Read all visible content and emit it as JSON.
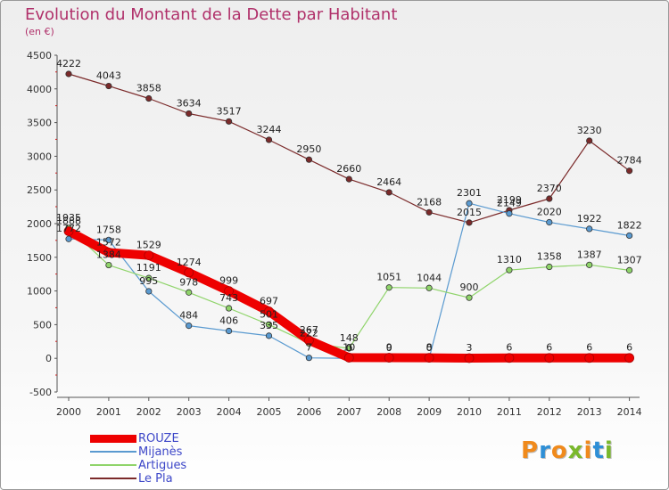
{
  "title": "Evolution du Montant de la Dette par Habitant",
  "unit": "(en €)",
  "logo": {
    "text": "Proxiti",
    "letter_colors": [
      "#f08a1c",
      "#2e8fd6",
      "#f08a1c",
      "#7ab82c",
      "#f08a1c",
      "#2e8fd6",
      "#7ab82c"
    ]
  },
  "chart_data": {
    "type": "line",
    "x": [
      "2000",
      "2001",
      "2002",
      "2003",
      "2004",
      "2005",
      "2006",
      "2007",
      "2008",
      "2009",
      "2010",
      "2011",
      "2012",
      "2013",
      "2014"
    ],
    "ylim": [
      -500,
      4500
    ],
    "yticks": [
      -500,
      0,
      500,
      1000,
      1500,
      2000,
      2500,
      3000,
      3500,
      4000,
      4500
    ],
    "grid": false,
    "legend_position": "bottom-left",
    "series": [
      {
        "name": "Le Pla",
        "color": "#7b2a2a",
        "width": 1.2,
        "values": [
          4222,
          4043,
          3858,
          3634,
          3517,
          3244,
          2950,
          2660,
          2464,
          2168,
          2015,
          2199,
          2370,
          3230,
          2784
        ]
      },
      {
        "name": "Mijanès",
        "color": "#5a9ad0",
        "width": 1.2,
        "values": [
          1772,
          1758,
          995,
          484,
          406,
          335,
          7,
          0,
          0,
          0,
          2301,
          2149,
          2020,
          1922,
          1822
        ]
      },
      {
        "name": "Artigues",
        "color": "#8fd46a",
        "width": 1.2,
        "values": [
          1935,
          1384,
          1191,
          978,
          743,
          501,
          222,
          148,
          1051,
          1044,
          900,
          1310,
          1358,
          1387,
          1307
        ]
      },
      {
        "name": "ROUZE",
        "color": "#ee0000",
        "width": 10,
        "values": [
          1888,
          1572,
          1529,
          1274,
          999,
          697,
          267,
          10,
          9,
          8,
          3,
          6,
          6,
          6,
          6
        ]
      }
    ]
  }
}
